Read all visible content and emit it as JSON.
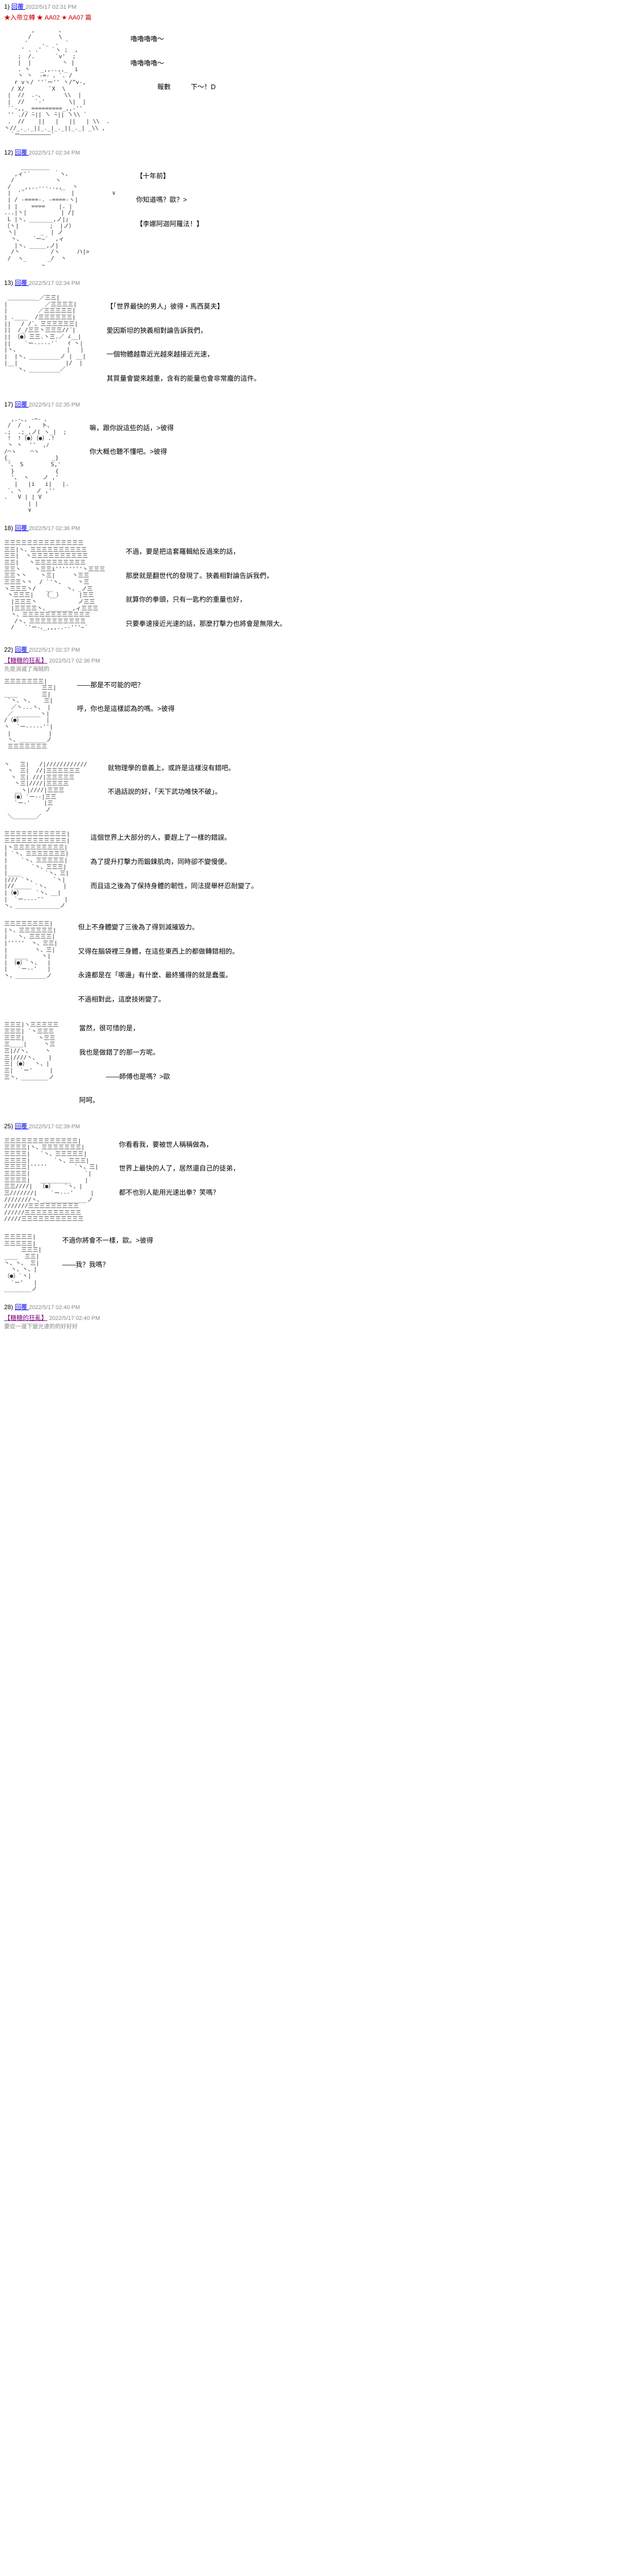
{
  "posts": [
    {
      "no": "1",
      "reply_label": "回覆",
      "timestamp": "2022/5/17 02:31 PM",
      "subtitle": "★入帝立轉 ★ AA02 ★ AA07 篇",
      "ascii": "        ,       、\n       /        \\\n      '    ._  .  `\n     ' . .'   `ヽ ;  ,\n    ;  /.      `v'  ;\n    |  |         丶 |\n    . 丶   _,,..,,_  i\n    丶 丶  -=- 、`. /\n   r vヽ/ ''`ー'' 丶/^v-,\n  / X/       `X  \\\n |  //  .-、      \\\\  |\n |  //   `-'       \\|  |\n ``-,,_ =========_,,-''\n '' .// ̄~|| ̄ヽ ̄~|| ̄ヽ\\\\ `\n .  //    ||   |   ||   | \\\\  .\n丶//_._._||_._|_._||_._| _\\\\ ,\n  `ー―――――――――'",
      "lines": [
        "嚕嚕嚕嚕～",
        "嚕嚕嚕嚕～",
        "　　　　報數　　　下～！D"
      ]
    },
    {
      "no": "12",
      "reply_label": "回覆",
      "timestamp": "2022/5/17 02:34 PM",
      "ascii": "     ＿＿＿＿＿\n   ,ィ'´       ｀ヽ、\n  /            ヽ\n /   _,,..-‐-..,,_  丶\n |  '´          ｀  |           ∨\n | / -====-. -====-ヽ|\n | |    ====    |. |\n...|丶|          | /|\n L |丶、_______,ノ|」\n（丶|         ;  |ノ）\n 丶|       _  | ノ\n  丶、   ´ー―`  ,ィ\n   |丶、_____,ノ|\n  /丶         /ヽ     ハ|>\n /  ヽ_      _/  丶\n           ~",
      "lines": [
        "【十年前】",
        "你知道嗎？歐？>",
        "【李娜阿迦阿羅法！】"
      ]
    },
    {
      "no": "13",
      "reply_label": "回覆",
      "timestamp": "2022/5/17 02:34 PM",
      "ascii": " ＿＿＿＿＿_／三三|\n|           ／三三三三|\n|         ／三三三三三|\n| .____  /三三三三三三|\n||   / /`、三三三三三三|\n||  /_/三三丶三三三//´|\n|| （●）三三.丶三.／ ∠__|\n||    `ー-----'´   ｲ 丶|\n|丶、              |   |\n|  |丶、_________ノ | __|\n|__|              |/  |\n    丶、_________／",
      "lines": [
        "【「世界最快的男人」彼得・馬西莫夫】",
        "愛因斯坦的狹義相對論告訴我們，",
        "一個物體越靠近光越來越接近光速，",
        "其質量會變來越重，含有的能量也會非常龐的這件。"
      ]
    },
    {
      "no": "17",
      "reply_label": "回覆",
      "timestamp": "2022/5/17 02:35 PM",
      "ascii": "  ,.-､, -─- ､\n /  /  ,   ト、\n.;  .;_,ノ( ヽ_|  ;\n !  !（●）（●）.!\n 丶 丶  ''  ,ﾉ\n/⌒ヽ    ⌒ヽ\n{_            _}\n '、 S        S,'\n  }            {\n  '、 ヽ    ノ ,'\n   |   |i   i|   |.\n `、丶    ノ ,''\n.   V | | V\n       | |\n       ∨",
      "lines": [
        "嘛，跟你說這些的話，>彼得",
        "你大概也聽不懂吧。>彼得"
      ]
    },
    {
      "no": "18",
      "reply_label": "回覆",
      "timestamp": "2022/5/17 02:36 PM",
      "ascii": "三三三三三三三三三三三三三三\n三三|ヽ、三三三三三三三三三三\n三三|  丶三三三三三三三三三三\n三三|   丶三三三三三三三三三\n三三丶    丶三三i''''''''丶三三三\n三三丶丶    丶三|     丶三三\n三三三丶丶  / `'丶、    丶三\nヽ三三三丶/   __    丶、_ノ三\n 丶三三三|   （__）     |三三\n  |三三三丶            ノ三三\n  |三三三三丶、_______,ィ三三三\n  丶、三三三三三三三三三三三三\n   /丶、三三三三三三三三三三\n  /   `'ー-､_,,,..-‐'''~´",
      "lines": [
        "不過，要是把這套羅輯給反過來的話，",
        "那麼就是翻世代的發現了。狹義相對論告訴我們，",
        "就算你的拳頭，只有一匙杓的重量也好，",
        "只要拳速接近光速的話，那麼打擊力也將會是無限大。"
      ]
    },
    {
      "no": "22",
      "reply_label": "回覆",
      "timestamp": "2022/5/17 02:37 PM",
      "subtitle_link": "【糖糖的狂亂】",
      "sig_suffix": "2022/5/17 02:36 PM",
      "sig_text": "先是消滅了海賊的",
      "blocks": [
        {
          "ascii": "三三三三三三三|\n           三三|\n____       三|\n `丶、丶、   三|\n  ／丶...丶、 |\n ／________丶|\n/（●）       |\n丶  `ー-----''|\n |           |\n 丶、________ノ\n 三三三三三三三",
          "lines": [
            "——那是不可能的吧？",
            "呼，你也是這樣認為的嗎。>彼得"
          ]
        },
        {
          "ascii": "丶   三|   /|////////////\n 丶  三|  //|三三三三三三\n  丶 三| ///|三三三三三\n   丶三|////|三三三三\n   __ヽ|////|三三三\n  （●）`ー--|三三\n   `ー‐'    |三\n            ノ\n ＼＿＿＿＿／",
          "lines": [
            "就物理學的意義上，或許是這樣沒有錯吧。",
            "不過話說的好，「天下武功唯快不破」。"
          ]
        },
        {
          "ascii": "三三三三三三三三三三三|\n三三三三三三三三三三三|\n|丶三三三三三三三三三|\n| `丶、三三三三三三三|\n|    `丶、三三三三三|\n|       `丶、三三三|\n|____       `丶、三|\n|/// `丶、     `丶|\n|//_____ `丶、    |\n|（●）    `丶、__|\n|  `ー----''      |\n丶、_____________ノ",
          "lines": [
            "這個世界上大部分的人，要趕上了一樣的錯誤。",
            "為了提升打擊力而鍛鍊肌肉，同時卻不變慢便。",
            "而且這之後為了保持身體的韌性，同法提舉杯忍耐變了。"
          ]
        },
        {
          "ascii": "三三三三三三三三|\n|丶、三三三三三三|\n|   丶、三三三三|\n|'''''  丶、三三|\n|        丶、三|\n|  ____    丶|\n| （●）`丶、  |\n|   `ー--'   |\n丶、_________ノ",
          "lines": [
            "但上不身體變了三後為了得到減摧毀力。",
            "又得在腦袋裡三身體，在這些東西上的都做轉錯相的。",
            "永遠都是在「哪邊」有什麼、最終獲得的就是蠢蛋。",
            "不過相對此，這麼技術變了。"
          ]
        },
        {
          "ascii": "三三三|ヽ三三三三三\n三三三| `丶三三三\n三三三|    丶三三\n三____|     丶三\n三|//丶、    丶\n三|////丶、   |\n三|（●）  丶、|\n三|  `ー'     |\n三丶、________ノ",
          "lines": [
            "當然，很可惜的是，",
            "我也是做錯了的那一方呢。",
            "　　　　——師傅也是嗎？>歐",
            "阿呵。"
          ]
        }
      ]
    },
    {
      "no": "25",
      "reply_label": "回覆",
      "timestamp": "2022/5/17 02:39 PM",
      "blocks": [
        {
          "ascii": "三三三三三三三三三三三三三|\n三三三三|丶、三三三三三三三|\n三三三三|   `丶、三三三三三|\n三三三三|       `丶、三三三|\n三三三三|'''''        `丶、三|\n三三三三|                `|\n三三三三|   _________    |\n三三////|  （●）   `丶、|\n三///////|    `ー---'     |\n////////丶、_____________ノ\n///////三三三三三三三三三\n//////三三三三三三三三三三\n/////三三三三三三三三三三三",
          "lines": [
            "你看看我，要被世人稱稱做為，",
            "世界上最快的人了，居然還自己的徒弟，",
            "都不也別人能用光速出拳？笑嗎？"
          ]
        },
        {
          "ascii": "三三三三三|\n三三三三三|\n     三三三|\n____  三三|\n丶、丶、 三|\n  丶、丶、|\n（●）`丶|\n  `ー'   |\n________ノ",
          "lines": [
            "不過你將會不一樣，歐。>彼得",
            "——我？我嗎？"
          ]
        }
      ]
    },
    {
      "no": "28",
      "reply_label": "回覆",
      "timestamp": "2022/5/17 02:40 PM",
      "subtitle_link": "【糖糖的狂亂】",
      "sig_suffix": "2022/5/17 02:40 PM",
      "sig_text": "要從一邊下變光速的的好好好"
    }
  ]
}
